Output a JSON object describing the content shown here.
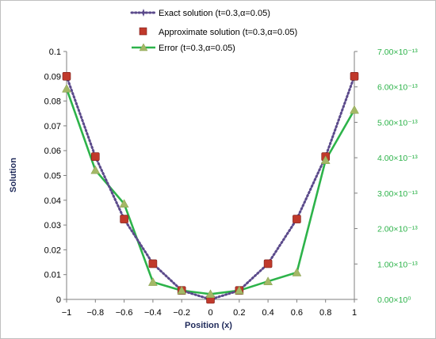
{
  "chart_data": {
    "type": "line",
    "xlabel": "Position (x)",
    "ylabel": "Solution",
    "x": [
      -1,
      -0.8,
      -0.6,
      -0.4,
      -0.2,
      0,
      0.2,
      0.4,
      0.6,
      0.8,
      1
    ],
    "x_tick_labels": [
      "−1",
      "−0.8",
      "−0.6",
      "−0.4",
      "−0.2",
      "0",
      "0.2",
      "0.4",
      "0.6",
      "0.8",
      "1"
    ],
    "xlim": [
      -1,
      1
    ],
    "ylim": [
      0,
      0.1
    ],
    "y_ticks": [
      "0",
      "0.01",
      "0.02",
      "0.03",
      "0.04",
      "0.05",
      "0.06",
      "0.07",
      "0.08",
      "0.09",
      "0.1"
    ],
    "y2lim": [
      0,
      7e-13
    ],
    "y2_ticks": [
      "0.00×10⁰",
      "1.00×10⁻¹³",
      "2.00×10⁻¹³",
      "3.00×10⁻¹³",
      "4.00×10⁻¹³",
      "5.00×10⁻¹³",
      "6.00×10⁻¹³",
      "7.00×10⁻¹³"
    ],
    "grid": false,
    "legend_position": "top-center",
    "series": [
      {
        "name": "Exact solution (t=0.3,α=0.05)",
        "axis": "left",
        "style": "dotted",
        "color": "#5b4a8b",
        "values": [
          0.09,
          0.0576,
          0.0324,
          0.0144,
          0.0036,
          0,
          0.0036,
          0.0144,
          0.0324,
          0.0576,
          0.09
        ]
      },
      {
        "name": "Approximate solution (t=0.3,α=0.05)",
        "axis": "left",
        "style": "markers",
        "color": "#c0392b",
        "values": [
          0.09,
          0.0576,
          0.0324,
          0.0144,
          0.0036,
          0,
          0.0036,
          0.0144,
          0.0324,
          0.0576,
          0.09
        ]
      },
      {
        "name": "Error (t=0.3,α=0.05)",
        "axis": "right",
        "style": "solid",
        "color": "#2db34a",
        "values": [
          5.95e-13,
          3.65e-13,
          2.7e-13,
          4.9e-14,
          2.5e-14,
          1.5e-14,
          2.5e-14,
          5.1e-14,
          7.6e-14,
          3.93e-13,
          5.35e-13
        ]
      }
    ]
  }
}
